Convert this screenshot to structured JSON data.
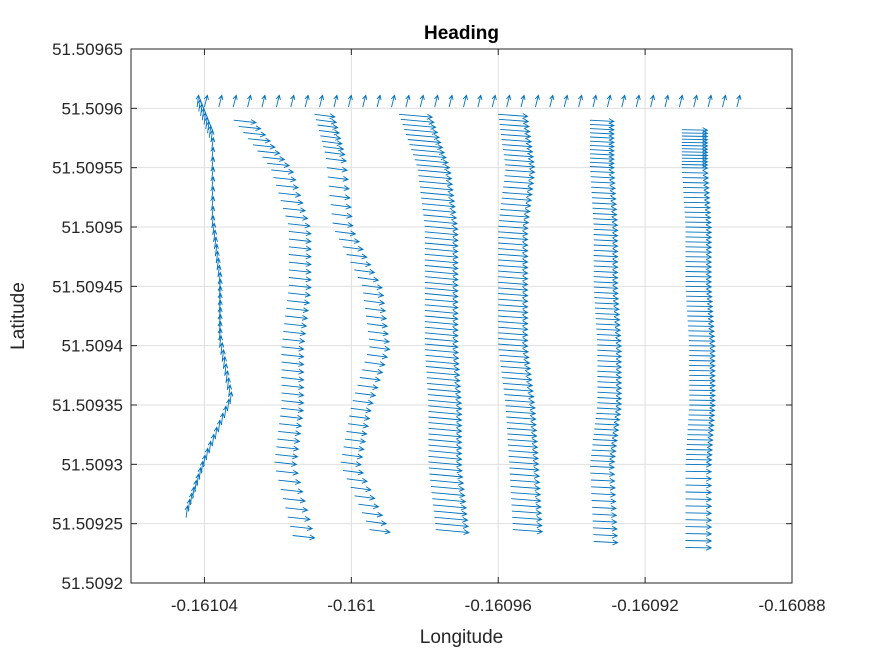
{
  "chart_data": {
    "type": "quiver",
    "title": "Heading",
    "xlabel": "Longitude",
    "ylabel": "Latitude",
    "xlim": [
      -0.16106,
      -0.16088
    ],
    "ylim": [
      51.5092,
      51.50965
    ],
    "xticks": [
      -0.16104,
      -0.161,
      -0.16096,
      -0.16092,
      -0.16088
    ],
    "xtick_labels": [
      "-0.16104",
      "-0.161",
      "-0.16096",
      "-0.16092",
      "-0.16088"
    ],
    "yticks": [
      51.5092,
      51.50925,
      51.5093,
      51.50935,
      51.5094,
      51.50945,
      51.5095,
      51.50955,
      51.5096,
      51.50965
    ],
    "ytick_labels": [
      "51.5092",
      "51.50925",
      "51.5093",
      "51.50935",
      "51.5094",
      "51.50945",
      "51.5095",
      "51.50955",
      "51.5096",
      "51.50965"
    ],
    "grid": true,
    "series_color": "#0072BD",
    "axes_color": "#262626",
    "grid_color": "#dfdfdf",
    "tracks": [
      {
        "x": [
          -0.161042,
          -0.161038,
          -0.161038,
          -0.161036,
          -0.161036,
          -0.161033,
          -0.16104,
          -0.161045
        ],
        "y": [
          51.509601,
          51.50957,
          51.5095,
          51.50945,
          51.5094,
          51.50935,
          51.5093,
          51.509255
        ],
        "n": 60,
        "u": 4e-07,
        "v": 1e-05
      },
      {
        "x": [
          -0.161032,
          -0.161022,
          -0.161017,
          -0.161017,
          -0.161019,
          -0.161019,
          -0.161021,
          -0.161016
        ],
        "y": [
          51.50959,
          51.50955,
          51.5095,
          51.50945,
          51.5094,
          51.50935,
          51.5093,
          51.50924
        ],
        "n": 55,
        "u": 6e-06,
        "v": -2e-06
      },
      {
        "x": [
          -0.16101,
          -0.161007,
          -0.161005,
          -0.160997,
          -0.160995,
          -0.161,
          -0.161003,
          -0.160995
        ],
        "y": [
          51.509595,
          51.50956,
          51.5095,
          51.50945,
          51.5094,
          51.50935,
          51.5093,
          51.509245
        ],
        "n": 55,
        "u": 5.5e-06,
        "v": -2.2e-06
      },
      {
        "x": [
          -0.160987,
          -0.160982,
          -0.16098,
          -0.16098,
          -0.16098,
          -0.160979,
          -0.160979,
          -0.160977
        ],
        "y": [
          51.509595,
          51.50955,
          51.5095,
          51.50945,
          51.5094,
          51.50935,
          51.5093,
          51.509245
        ],
        "n": 75,
        "u": 9e-06,
        "v": -2.5e-06
      },
      {
        "x": [
          -0.16096,
          -0.160958,
          -0.16096,
          -0.16096,
          -0.16096,
          -0.160958,
          -0.160957,
          -0.160956
        ],
        "y": [
          51.509595,
          51.50955,
          51.5095,
          51.50945,
          51.5094,
          51.50935,
          51.5093,
          51.509245
        ],
        "n": 75,
        "u": 8e-06,
        "v": -1.8e-06
      },
      {
        "x": [
          -0.160935,
          -0.160935,
          -0.160934,
          -0.160934,
          -0.160933,
          -0.160933,
          -0.160935,
          -0.160934
        ],
        "y": [
          51.50959,
          51.50955,
          51.5095,
          51.50945,
          51.5094,
          51.50935,
          51.5093,
          51.509235
        ],
        "n": 80,
        "u": 6.5e-06,
        "v": -1e-06
      },
      {
        "x": [
          -0.16091,
          -0.16091,
          -0.160909,
          -0.160909,
          -0.160908,
          -0.160908,
          -0.160909,
          -0.160909
        ],
        "y": [
          51.509582,
          51.50955,
          51.5095,
          51.50945,
          51.5094,
          51.50935,
          51.5093,
          51.50923
        ],
        "n": 85,
        "u": 7e-06,
        "v": -4e-07
      }
    ],
    "top_turn": {
      "x_start": -0.16104,
      "x_end": -0.160895,
      "y": 51.509601,
      "n": 38,
      "u": 8e-07,
      "v": 1e-05
    }
  }
}
